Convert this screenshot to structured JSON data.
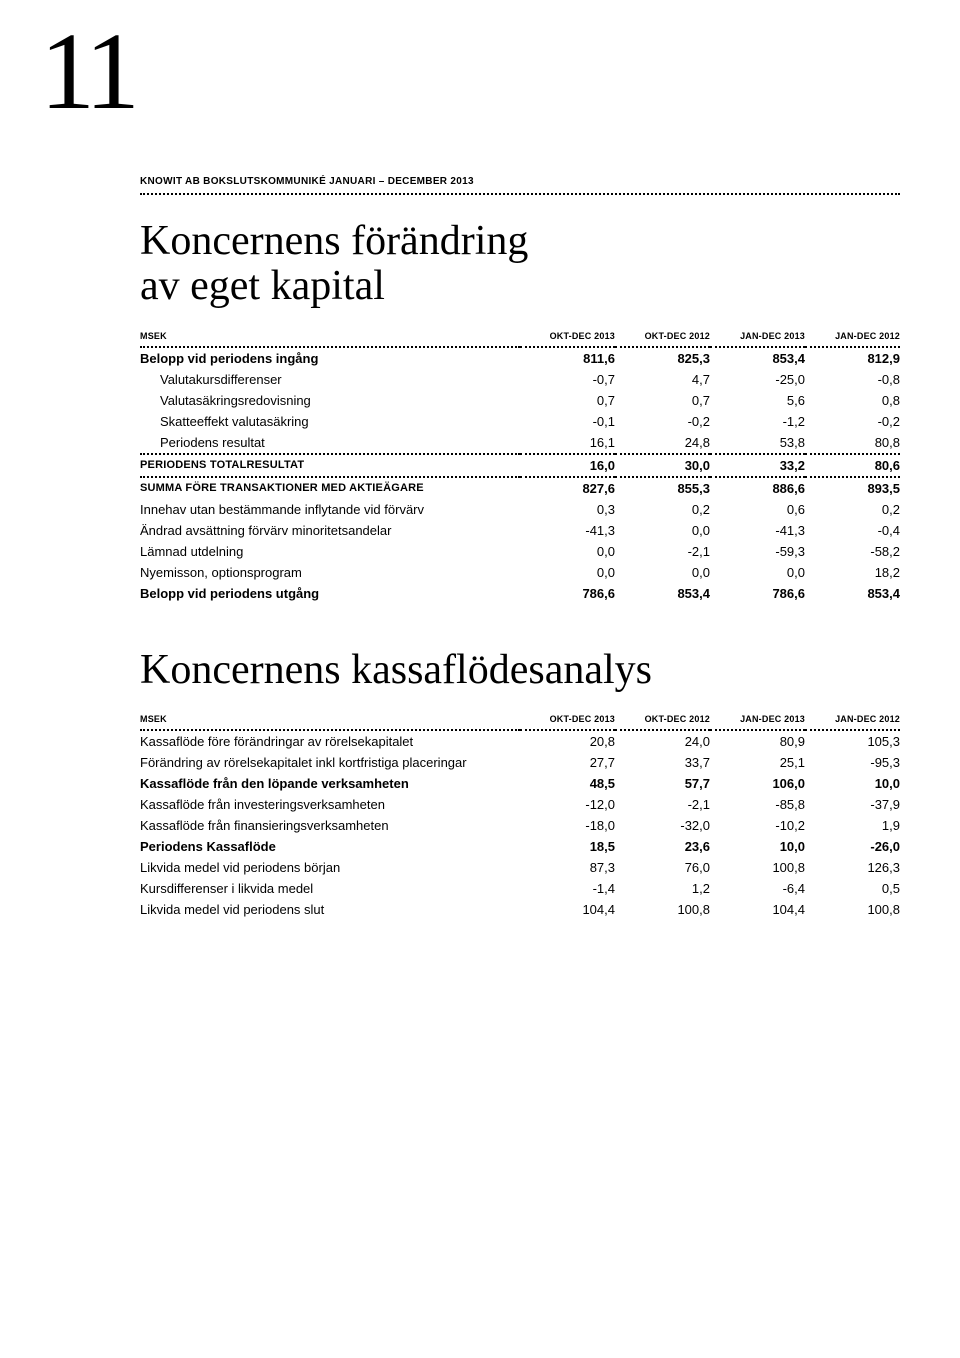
{
  "page_number": "11",
  "header": "KNOWIT AB BOKSLUTSKOMMUNIKÉ JANUARI – DECEMBER 2013",
  "table1": {
    "title_line1": "Koncernens förändring",
    "title_line2": "av eget kapital",
    "unit_label": "MSEK",
    "columns": [
      "OKT-DEC 2013",
      "OKT-DEC 2012",
      "JAN-DEC 2013",
      "JAN-DEC 2012"
    ],
    "rows": {
      "r0": {
        "label": "Belopp vid periodens ingång",
        "v": [
          "811,6",
          "825,3",
          "853,4",
          "812,9"
        ]
      },
      "r1": {
        "label": "Valutakursdifferenser",
        "v": [
          "-0,7",
          "4,7",
          "-25,0",
          "-0,8"
        ]
      },
      "r2": {
        "label": "Valutasäkringsredovisning",
        "v": [
          "0,7",
          "0,7",
          "5,6",
          "0,8"
        ]
      },
      "r3": {
        "label": "Skatteeffekt valutasäkring",
        "v": [
          "-0,1",
          "-0,2",
          "-1,2",
          "-0,2"
        ]
      },
      "r4": {
        "label": "Periodens resultat",
        "v": [
          "16,1",
          "24,8",
          "53,8",
          "80,8"
        ]
      },
      "r5": {
        "label": "PERIODENS TOTALRESULTAT",
        "v": [
          "16,0",
          "30,0",
          "33,2",
          "80,6"
        ]
      },
      "r6": {
        "label": "SUMMA FÖRE TRANSAKTIONER MED AKTIEÄGARE",
        "v": [
          "827,6",
          "855,3",
          "886,6",
          "893,5"
        ]
      },
      "r7": {
        "label": "Innehav utan bestämmande inflytande vid förvärv",
        "v": [
          "0,3",
          "0,2",
          "0,6",
          "0,2"
        ]
      },
      "r8": {
        "label": "Ändrad avsättning förvärv minoritetsandelar",
        "v": [
          "-41,3",
          "0,0",
          "-41,3",
          "-0,4"
        ]
      },
      "r9": {
        "label": "Lämnad utdelning",
        "v": [
          "0,0",
          "-2,1",
          "-59,3",
          "-58,2"
        ]
      },
      "r10": {
        "label": "Nyemisson, optionsprogram",
        "v": [
          "0,0",
          "0,0",
          "0,0",
          "18,2"
        ]
      },
      "r11": {
        "label": "Belopp vid periodens utgång",
        "v": [
          "786,6",
          "853,4",
          "786,6",
          "853,4"
        ]
      }
    }
  },
  "table2": {
    "title": "Koncernens kassaflödesanalys",
    "unit_label": "MSEK",
    "columns": [
      "OKT-DEC 2013",
      "OKT-DEC 2012",
      "JAN-DEC 2013",
      "JAN-DEC 2012"
    ],
    "rows": {
      "r0": {
        "label": "Kassaflöde före förändringar av rörelsekapitalet",
        "v": [
          "20,8",
          "24,0",
          "80,9",
          "105,3"
        ]
      },
      "r1": {
        "label": "Förändring av rörelsekapitalet inkl kortfristiga placeringar",
        "v": [
          "27,7",
          "33,7",
          "25,1",
          "-95,3"
        ]
      },
      "r2": {
        "label": "Kassaflöde från den löpande verksamheten",
        "v": [
          "48,5",
          "57,7",
          "106,0",
          "10,0"
        ]
      },
      "r3": {
        "label": "Kassaflöde från investeringsverksamheten",
        "v": [
          "-12,0",
          "-2,1",
          "-85,8",
          "-37,9"
        ]
      },
      "r4": {
        "label": "Kassaflöde från finansieringsverksamheten",
        "v": [
          "-18,0",
          "-32,0",
          "-10,2",
          "1,9"
        ]
      },
      "r5": {
        "label": "Periodens Kassaflöde",
        "v": [
          "18,5",
          "23,6",
          "10,0",
          "-26,0"
        ]
      },
      "r6": {
        "label": "Likvida medel vid periodens början",
        "v": [
          "87,3",
          "76,0",
          "100,8",
          "126,3"
        ]
      },
      "r7": {
        "label": "Kursdifferenser i likvida medel",
        "v": [
          "-1,4",
          "1,2",
          "-6,4",
          "0,5"
        ]
      },
      "r8": {
        "label": "Likvida medel vid periodens slut",
        "v": [
          "104,4",
          "100,8",
          "104,4",
          "100,8"
        ]
      }
    }
  },
  "style": {
    "background_color": "#ffffff",
    "text_color": "#000000",
    "page_number_fontsize": 110,
    "title_fontsize": 42,
    "body_fontsize": 13,
    "header_fontsize": 10,
    "column_header_fontsize": 9,
    "dotted_border_color": "#000000"
  }
}
